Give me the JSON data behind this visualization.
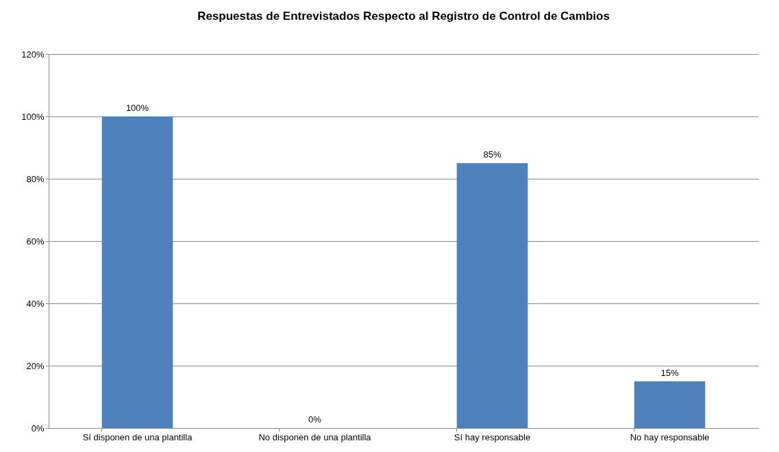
{
  "chart_data": {
    "type": "bar",
    "title": "Respuestas de Entrevistados Respecto al Registro de Control de Cambios",
    "categories": [
      "Sí disponen de una plantilla",
      "No disponen de una plantilla",
      "Sí hay responsable",
      "No hay responsable"
    ],
    "values": [
      100,
      0,
      85,
      15
    ],
    "value_labels": [
      "100%",
      "0%",
      "85%",
      "15%"
    ],
    "color": "#4f81bd",
    "ylim": [
      0,
      120
    ],
    "yticks": [
      {
        "value": 0,
        "label": "0%"
      },
      {
        "value": 20,
        "label": "20%"
      },
      {
        "value": 40,
        "label": "40%"
      },
      {
        "value": 60,
        "label": "60%"
      },
      {
        "value": 80,
        "label": "80%"
      },
      {
        "value": 100,
        "label": "100%"
      },
      {
        "value": 120,
        "label": "120%"
      }
    ],
    "grid": "y",
    "legend": false
  }
}
